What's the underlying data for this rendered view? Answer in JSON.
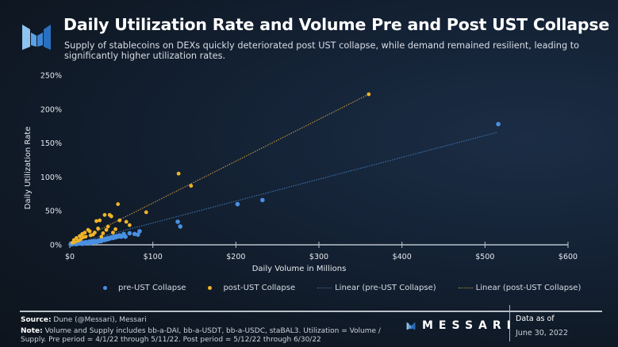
{
  "header": {
    "title": "Daily Utilization Rate and Volume Pre and Post UST Collapse",
    "subtitle": "Supply of stablecoins on DEXs quickly deteriorated post UST collapse, while demand remained resilient, leading to significantly higher utilization rates.",
    "logo_icon": "messari-logo-icon"
  },
  "colors": {
    "pre": "#4a90e2",
    "post": "#f0b429",
    "pre_trend": "#3d6fa8",
    "post_trend": "#b8923a",
    "axis": "#b9c1c9",
    "tick_text": "#e4e8ee"
  },
  "chart_data": {
    "type": "scatter",
    "title": "Daily Utilization Rate and Volume Pre and Post UST Collapse",
    "xlabel": "Daily Volume in Millions",
    "ylabel": "Daily Utilization Rate",
    "xlim": [
      0,
      600
    ],
    "ylim": [
      0,
      250
    ],
    "x_ticks": [
      0,
      100,
      200,
      300,
      400,
      500,
      600
    ],
    "x_tick_labels": [
      "$0",
      "$100",
      "$200",
      "$300",
      "$400",
      "$500",
      "$600"
    ],
    "y_ticks": [
      0,
      50,
      100,
      150,
      200,
      250
    ],
    "y_tick_labels": [
      "0%",
      "50%",
      "100%",
      "150%",
      "200%",
      "250%"
    ],
    "grid": false,
    "legend_position": "bottom",
    "series": [
      {
        "name": "pre-UST Collapse",
        "kind": "points",
        "color_key": "pre",
        "points": [
          [
            1,
            0.5
          ],
          [
            3,
            1
          ],
          [
            5,
            1.5
          ],
          [
            7,
            2
          ],
          [
            8,
            1
          ],
          [
            10,
            2.5
          ],
          [
            12,
            2
          ],
          [
            14,
            3
          ],
          [
            15,
            1.5
          ],
          [
            17,
            3.5
          ],
          [
            18,
            2
          ],
          [
            20,
            4
          ],
          [
            22,
            3
          ],
          [
            24,
            4.5
          ],
          [
            25,
            2.5
          ],
          [
            27,
            5
          ],
          [
            28,
            3.5
          ],
          [
            30,
            5.5
          ],
          [
            32,
            4
          ],
          [
            34,
            6
          ],
          [
            35,
            5
          ],
          [
            37,
            7
          ],
          [
            38,
            5.5
          ],
          [
            40,
            8
          ],
          [
            42,
            7
          ],
          [
            43,
            9
          ],
          [
            45,
            8
          ],
          [
            46,
            10
          ],
          [
            48,
            9
          ],
          [
            50,
            11
          ],
          [
            52,
            10
          ],
          [
            53,
            12
          ],
          [
            55,
            11
          ],
          [
            56,
            13
          ],
          [
            58,
            12
          ],
          [
            60,
            14
          ],
          [
            62,
            12
          ],
          [
            65,
            16
          ],
          [
            67,
            12
          ],
          [
            72,
            17
          ],
          [
            78,
            16
          ],
          [
            84,
            20
          ],
          [
            82,
            15
          ],
          [
            130,
            34
          ],
          [
            133,
            27
          ],
          [
            202,
            60
          ],
          [
            232,
            66
          ],
          [
            516,
            178
          ]
        ]
      },
      {
        "name": "post-UST Collapse",
        "kind": "points",
        "color_key": "post",
        "points": [
          [
            3,
            3
          ],
          [
            5,
            7
          ],
          [
            6,
            4
          ],
          [
            8,
            10
          ],
          [
            10,
            6
          ],
          [
            12,
            13
          ],
          [
            13,
            8
          ],
          [
            15,
            16
          ],
          [
            16,
            11
          ],
          [
            18,
            18
          ],
          [
            19,
            12
          ],
          [
            22,
            22
          ],
          [
            24,
            20
          ],
          [
            25,
            14
          ],
          [
            28,
            15
          ],
          [
            30,
            18
          ],
          [
            32,
            35
          ],
          [
            34,
            24
          ],
          [
            36,
            36
          ],
          [
            38,
            12
          ],
          [
            40,
            17
          ],
          [
            42,
            44
          ],
          [
            44,
            22
          ],
          [
            46,
            27
          ],
          [
            48,
            44
          ],
          [
            50,
            42
          ],
          [
            52,
            18
          ],
          [
            55,
            23
          ],
          [
            58,
            60
          ],
          [
            60,
            36
          ],
          [
            68,
            34
          ],
          [
            72,
            29
          ],
          [
            92,
            48
          ],
          [
            131,
            105
          ],
          [
            146,
            87
          ],
          [
            360,
            222
          ]
        ]
      },
      {
        "name": "Linear (pre-UST Collapse)",
        "kind": "trendline",
        "color_key": "pre_trend",
        "from": [
          0,
          0
        ],
        "to": [
          515,
          166
        ]
      },
      {
        "name": "Linear (post-UST Collapse)",
        "kind": "trendline",
        "color_key": "post_trend",
        "from": [
          0,
          0
        ],
        "to": [
          360,
          222
        ]
      }
    ]
  },
  "legend": {
    "items": [
      {
        "label": "pre-UST Collapse",
        "type": "dot",
        "color_key": "pre"
      },
      {
        "label": "post-UST Collapse",
        "type": "dot",
        "color_key": "post"
      },
      {
        "label": "Linear (pre-UST Collapse)",
        "type": "line",
        "color_key": "pre_trend"
      },
      {
        "label": "Linear (post-UST Collapse)",
        "type": "line",
        "color_key": "post_trend"
      }
    ]
  },
  "footer": {
    "source_label": "Source:",
    "source_text": " Dune (@Messari), Messari",
    "note_label": "Note:",
    "note_text": " Volume and Supply includes bb-a-DAI, bb-a-USDT, bb-a-USDC, staBAL3. Utilization = Volume / Supply. Pre period = 4/1/22 through 5/11/22. Post period = 5/12/22 through 6/30/22",
    "brand": "MESSARI",
    "data_as_of_label": "Data as of",
    "data_as_of_date": "June 30, 2022"
  }
}
